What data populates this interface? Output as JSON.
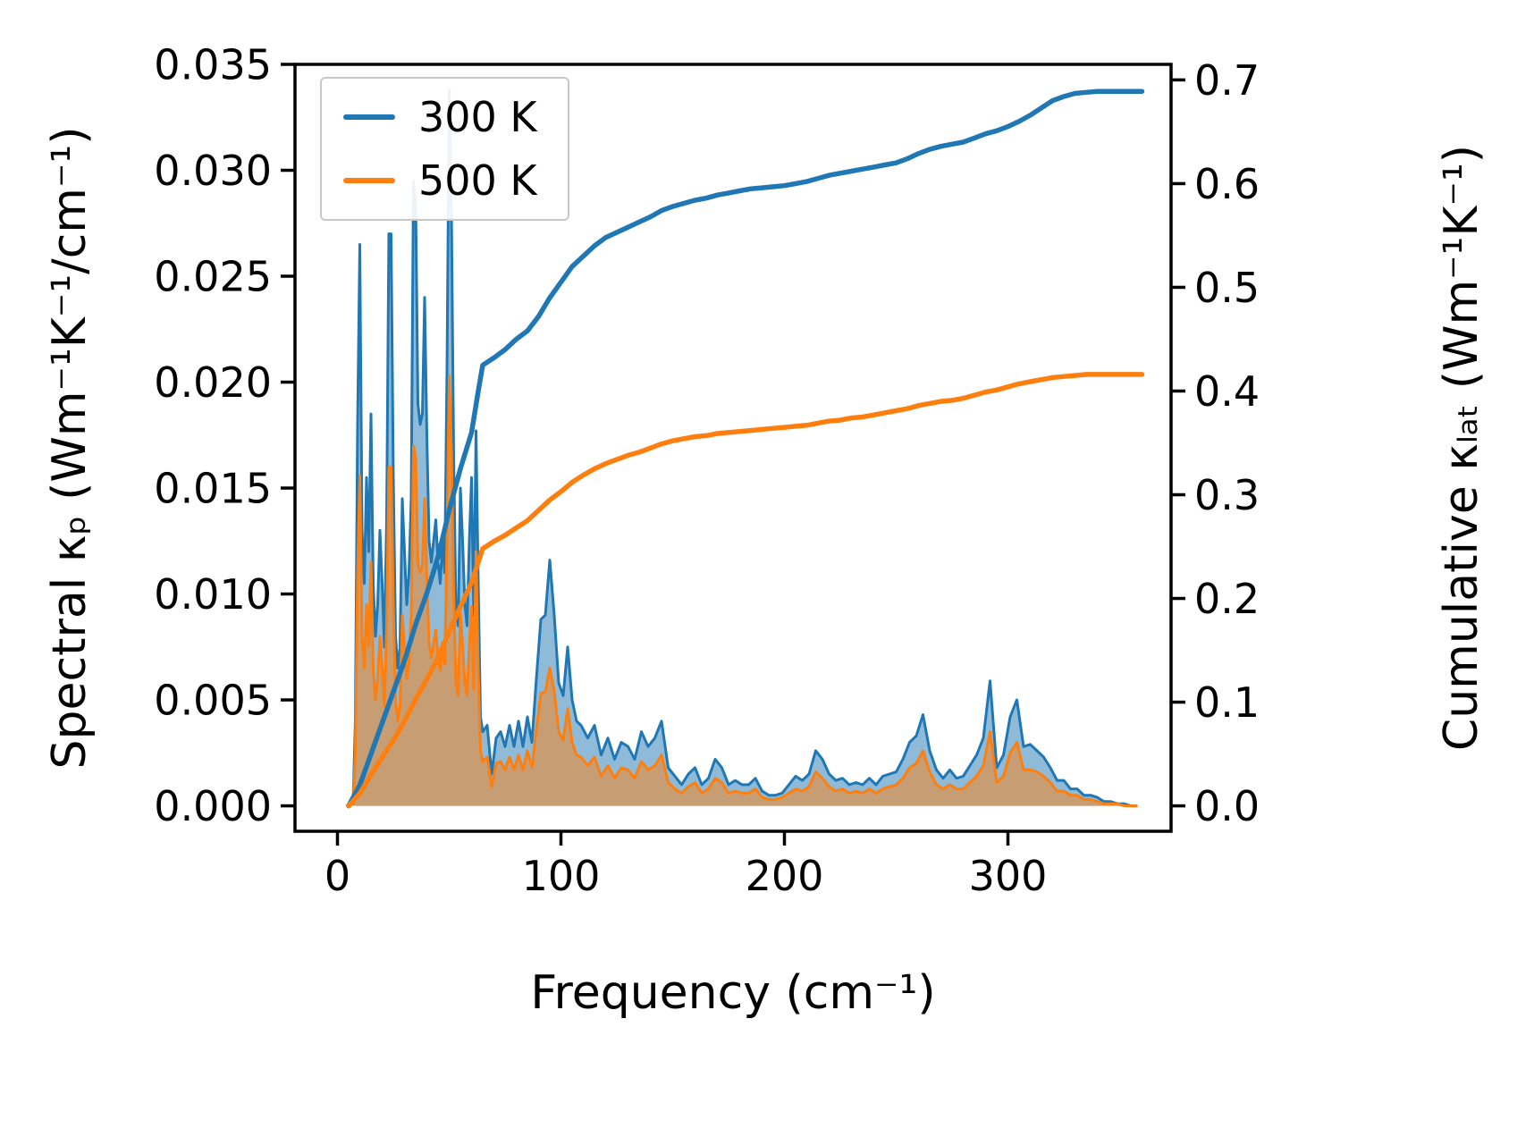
{
  "figure": {
    "background": "#ffffff",
    "axis_color": "#000000"
  },
  "chart_data": {
    "type": "line+area",
    "title": "",
    "xlabel": "Frequency (cm⁻¹)",
    "ylabel_left": "Spectral κₚ (Wm⁻¹K⁻¹/cm⁻¹)",
    "ylabel_right": "Cumulative κₗₐₜ (Wm⁻¹K⁻¹)",
    "xlim": [
      -19,
      373
    ],
    "ylim_left": [
      -0.0012,
      0.035
    ],
    "ylim_right": [
      -0.0245,
      0.715
    ],
    "grid": false,
    "xticks": [
      0,
      100,
      200,
      300
    ],
    "yticks_left": [
      "0.000",
      "0.005",
      "0.010",
      "0.015",
      "0.020",
      "0.025",
      "0.030",
      "0.035"
    ],
    "yticks_right": [
      "0.0",
      "0.1",
      "0.2",
      "0.3",
      "0.4",
      "0.5",
      "0.6",
      "0.7"
    ],
    "colors": {
      "blue": "#1f77b4",
      "orange": "#ff7f0e"
    },
    "legend": {
      "position": "upper-left",
      "entries": [
        {
          "label": "300 K",
          "color_key": "blue"
        },
        {
          "label": "500 K",
          "color_key": "orange"
        }
      ]
    },
    "x_spectral": [
      4,
      7,
      8,
      9,
      10,
      11,
      12,
      13,
      14,
      15,
      16,
      17,
      18,
      19,
      20,
      21,
      22,
      23,
      24,
      25,
      26,
      27,
      28,
      29,
      30,
      31,
      32,
      33,
      34,
      35,
      36,
      37,
      38,
      39,
      40,
      41,
      42,
      43,
      44,
      45,
      46,
      47,
      48,
      49,
      50,
      51,
      52,
      53,
      54,
      55,
      56,
      57,
      58,
      59,
      60,
      61,
      62,
      63,
      64,
      65,
      67,
      69,
      71,
      73,
      75,
      77,
      79,
      81,
      83,
      85,
      87,
      89,
      91,
      93,
      95,
      97,
      99,
      101,
      103,
      105,
      107,
      109,
      112,
      115,
      118,
      121,
      124,
      127,
      130,
      133,
      136,
      139,
      142,
      145,
      148,
      151,
      154,
      157,
      160,
      163,
      166,
      169,
      172,
      175,
      178,
      181,
      184,
      187,
      190,
      193,
      196,
      199,
      202,
      205,
      208,
      211,
      214,
      217,
      220,
      223,
      226,
      229,
      232,
      235,
      238,
      241,
      244,
      247,
      250,
      253,
      256,
      259,
      262,
      265,
      268,
      271,
      274,
      277,
      280,
      283,
      286,
      289,
      292,
      295,
      298,
      301,
      304,
      307,
      310,
      313,
      316,
      319,
      322,
      325,
      328,
      331,
      334,
      337,
      340,
      343,
      346,
      349,
      352,
      355,
      358
    ],
    "x_cumulative": [
      5,
      10,
      15,
      20,
      25,
      30,
      35,
      40,
      45,
      50,
      55,
      60,
      63,
      65,
      70,
      75,
      80,
      85,
      90,
      95,
      100,
      105,
      110,
      115,
      120,
      125,
      130,
      135,
      140,
      145,
      150,
      155,
      160,
      165,
      170,
      175,
      180,
      185,
      190,
      195,
      200,
      205,
      210,
      215,
      220,
      225,
      230,
      235,
      240,
      245,
      250,
      255,
      260,
      265,
      270,
      275,
      280,
      285,
      290,
      295,
      300,
      305,
      310,
      315,
      320,
      325,
      330,
      335,
      340,
      345,
      350,
      360
    ],
    "series": [
      {
        "name": "300 K spectral kappa_p",
        "kind": "area",
        "axis": "left",
        "color_key": "blue",
        "x": "x_spectral",
        "fill_opacity": 0.5,
        "line_width": 3,
        "y": [
          0,
          0.0002,
          0.004,
          0.018,
          0.0265,
          0.013,
          0.0105,
          0.0155,
          0.012,
          0.0185,
          0.0105,
          0.008,
          0.0095,
          0.013,
          0.0105,
          0.0075,
          0.0135,
          0.027,
          0.027,
          0.0155,
          0.008,
          0.0065,
          0.0075,
          0.0145,
          0.012,
          0.0095,
          0.011,
          0.0145,
          0.0295,
          0.0285,
          0.019,
          0.018,
          0.0185,
          0.024,
          0.0175,
          0.0125,
          0.0115,
          0.0125,
          0.0135,
          0.0115,
          0.0105,
          0.0125,
          0.011,
          0.0205,
          0.0338,
          0.028,
          0.0165,
          0.0095,
          0.0085,
          0.015,
          0.0125,
          0.0095,
          0.0085,
          0.0125,
          0.0155,
          0.009,
          0.0177,
          0.0105,
          0.0042,
          0.0035,
          0.0038,
          0.0015,
          0.0032,
          0.0035,
          0.0028,
          0.0038,
          0.0028,
          0.004,
          0.0028,
          0.0042,
          0.003,
          0.006,
          0.0088,
          0.009,
          0.0116,
          0.009,
          0.0058,
          0.0052,
          0.0075,
          0.005,
          0.004,
          0.0038,
          0.0032,
          0.0038,
          0.0024,
          0.0032,
          0.0022,
          0.003,
          0.0028,
          0.0022,
          0.0035,
          0.0028,
          0.0032,
          0.004,
          0.0018,
          0.0014,
          0.001,
          0.0015,
          0.0018,
          0.001,
          0.0013,
          0.0022,
          0.0018,
          0.001,
          0.0012,
          0.001,
          0.001,
          0.0013,
          0.0007,
          0.0005,
          0.0005,
          0.0006,
          0.001,
          0.0014,
          0.0012,
          0.0015,
          0.0026,
          0.0022,
          0.0015,
          0.0012,
          0.0013,
          0.001,
          0.0011,
          0.001,
          0.0013,
          0.001,
          0.0014,
          0.0015,
          0.0016,
          0.0022,
          0.003,
          0.0033,
          0.0043,
          0.0026,
          0.0017,
          0.0013,
          0.0017,
          0.0013,
          0.0014,
          0.0019,
          0.0024,
          0.0032,
          0.0059,
          0.0018,
          0.0024,
          0.0042,
          0.005,
          0.0028,
          0.0029,
          0.0026,
          0.0023,
          0.0018,
          0.0012,
          0.0012,
          0.0008,
          0.0008,
          0.0005,
          0.0005,
          0.0004,
          0.0002,
          0.0002,
          0.0001,
          0.0001,
          0,
          0
        ]
      },
      {
        "name": "500 K spectral kappa_p",
        "kind": "area",
        "axis": "left",
        "color_key": "orange",
        "x": "x_spectral",
        "fill_opacity": 0.5,
        "line_width": 3,
        "y": [
          0,
          0.0001,
          0.0025,
          0.011,
          0.0156,
          0.008,
          0.0065,
          0.0095,
          0.0075,
          0.0115,
          0.0065,
          0.005,
          0.006,
          0.008,
          0.0065,
          0.0047,
          0.0085,
          0.016,
          0.016,
          0.0095,
          0.005,
          0.004,
          0.0047,
          0.009,
          0.0075,
          0.006,
          0.0068,
          0.009,
          0.017,
          0.0165,
          0.0115,
          0.011,
          0.0113,
          0.0145,
          0.0107,
          0.0077,
          0.007,
          0.0077,
          0.0083,
          0.007,
          0.0064,
          0.0077,
          0.0067,
          0.0125,
          0.0203,
          0.0168,
          0.01,
          0.0058,
          0.0052,
          0.0091,
          0.0076,
          0.0058,
          0.0052,
          0.0076,
          0.0094,
          0.0055,
          0.012,
          0.0064,
          0.0026,
          0.0021,
          0.0023,
          0.0009,
          0.002,
          0.0021,
          0.0017,
          0.0023,
          0.0017,
          0.0024,
          0.0017,
          0.0026,
          0.0018,
          0.0036,
          0.0053,
          0.0054,
          0.0065,
          0.0054,
          0.0035,
          0.0031,
          0.0046,
          0.003,
          0.0024,
          0.0023,
          0.0019,
          0.0023,
          0.0014,
          0.0019,
          0.0013,
          0.0018,
          0.0017,
          0.0013,
          0.0021,
          0.0017,
          0.0019,
          0.0024,
          0.0011,
          0.0008,
          0.0006,
          0.0009,
          0.0011,
          0.0006,
          0.0008,
          0.0013,
          0.0011,
          0.0006,
          0.0007,
          0.0006,
          0.0006,
          0.0008,
          0.0004,
          0.0003,
          0.0003,
          0.0004,
          0.0006,
          0.0008,
          0.0007,
          0.0009,
          0.0016,
          0.0013,
          0.0009,
          0.0007,
          0.0008,
          0.0006,
          0.0007,
          0.0006,
          0.0008,
          0.0006,
          0.0008,
          0.0009,
          0.001,
          0.0013,
          0.0018,
          0.002,
          0.0026,
          0.0016,
          0.001,
          0.0008,
          0.001,
          0.0008,
          0.0008,
          0.0011,
          0.0014,
          0.0019,
          0.0035,
          0.0011,
          0.0014,
          0.0025,
          0.003,
          0.0017,
          0.0017,
          0.0016,
          0.0014,
          0.0011,
          0.0007,
          0.0007,
          0.0005,
          0.0005,
          0.0003,
          0.0003,
          0.0002,
          0.0001,
          0.0001,
          0.0001,
          0,
          0,
          0
        ]
      },
      {
        "name": "300 K cumulative kappa_lat",
        "kind": "line",
        "axis": "right",
        "color_key": "blue",
        "x": "x_cumulative",
        "line_width": 5.5,
        "y": [
          0,
          0.02,
          0.05,
          0.08,
          0.11,
          0.14,
          0.175,
          0.205,
          0.24,
          0.285,
          0.325,
          0.36,
          0.4,
          0.425,
          0.432,
          0.44,
          0.45,
          0.458,
          0.472,
          0.49,
          0.505,
          0.52,
          0.53,
          0.54,
          0.548,
          0.553,
          0.558,
          0.563,
          0.568,
          0.574,
          0.578,
          0.581,
          0.584,
          0.586,
          0.589,
          0.591,
          0.593,
          0.595,
          0.596,
          0.597,
          0.598,
          0.6,
          0.602,
          0.605,
          0.608,
          0.61,
          0.612,
          0.614,
          0.616,
          0.618,
          0.62,
          0.624,
          0.629,
          0.633,
          0.636,
          0.638,
          0.64,
          0.644,
          0.648,
          0.651,
          0.655,
          0.66,
          0.666,
          0.673,
          0.68,
          0.684,
          0.687,
          0.688,
          0.689,
          0.689,
          0.689,
          0.689
        ]
      },
      {
        "name": "500 K cumulative kappa_lat",
        "kind": "line",
        "axis": "right",
        "color_key": "orange",
        "x": "x_cumulative",
        "line_width": 5.5,
        "y": [
          0,
          0.012,
          0.03,
          0.047,
          0.063,
          0.082,
          0.103,
          0.122,
          0.143,
          0.168,
          0.192,
          0.215,
          0.235,
          0.248,
          0.255,
          0.261,
          0.268,
          0.275,
          0.285,
          0.295,
          0.303,
          0.312,
          0.319,
          0.325,
          0.33,
          0.334,
          0.338,
          0.341,
          0.345,
          0.349,
          0.352,
          0.354,
          0.356,
          0.357,
          0.359,
          0.36,
          0.361,
          0.362,
          0.363,
          0.364,
          0.365,
          0.366,
          0.367,
          0.369,
          0.371,
          0.372,
          0.374,
          0.375,
          0.377,
          0.379,
          0.381,
          0.383,
          0.386,
          0.388,
          0.39,
          0.391,
          0.393,
          0.396,
          0.399,
          0.401,
          0.404,
          0.407,
          0.409,
          0.411,
          0.413,
          0.414,
          0.415,
          0.416,
          0.416,
          0.416,
          0.416,
          0.416
        ]
      }
    ]
  }
}
